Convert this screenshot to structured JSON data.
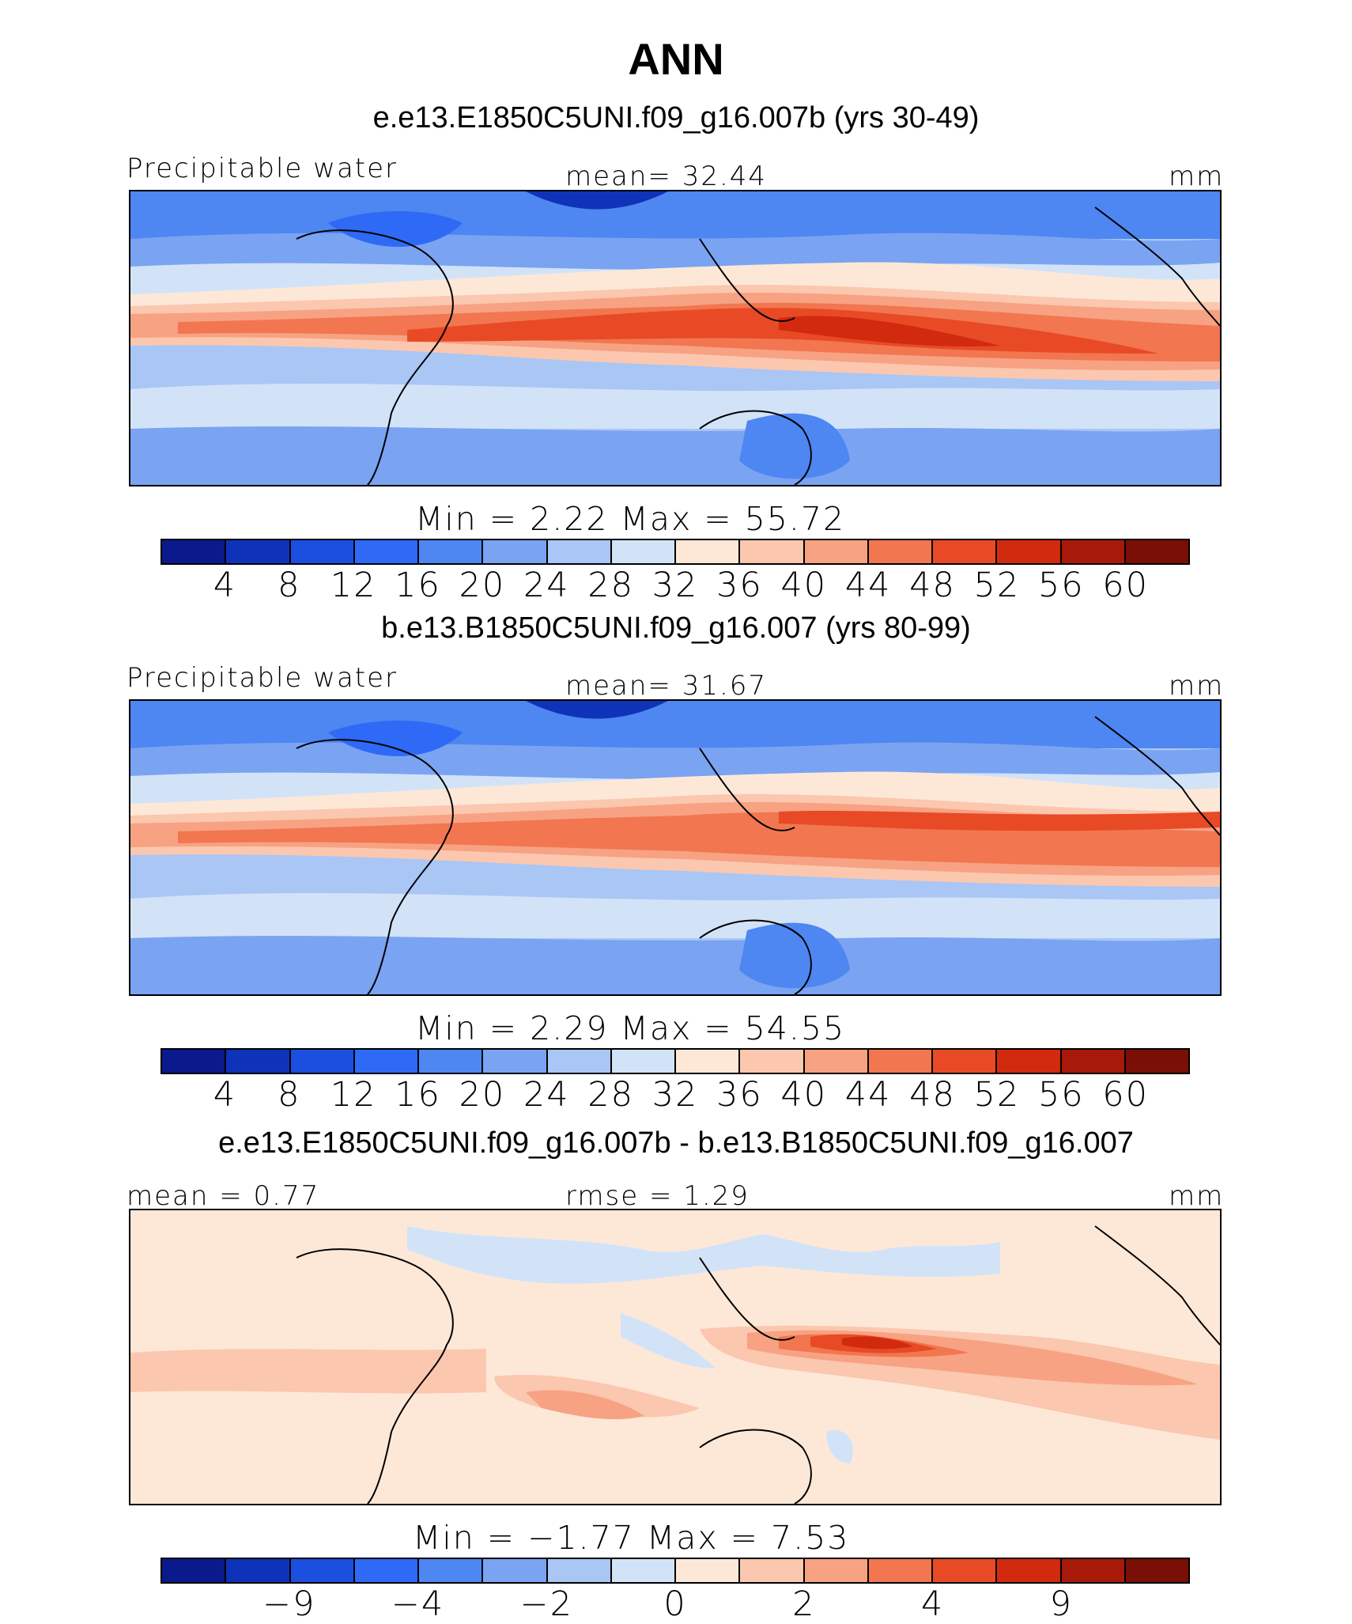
{
  "figure": {
    "title": "ANN",
    "colors": {
      "full": [
        "#0a1a8c",
        "#0f33b8",
        "#1a4fe0",
        "#2e6af5",
        "#4e86f2",
        "#7aa3f2",
        "#a9c6f5",
        "#d2e3f8",
        "#fde8d8",
        "#fbc7ae",
        "#f7a283",
        "#f27650",
        "#e84a26",
        "#d22a0e",
        "#a71a0a",
        "#7a0f06"
      ],
      "diff": [
        "#0a1a8c",
        "#0f33b8",
        "#1a4fe0",
        "#2e6af5",
        "#4e86f2",
        "#7aa3f2",
        "#a9c6f5",
        "#d2e3f8",
        "#fde8d8",
        "#fbc7ae",
        "#f7a283",
        "#f27650",
        "#e84a26",
        "#d22a0e",
        "#a71a0a",
        "#7a0f06"
      ]
    }
  },
  "panels": [
    {
      "subtitle": "e.e13.E1850C5UNI.f09_g16.007b (yrs 30-49)",
      "left_label": "Precipitable water",
      "center_label": "mean=   32.44",
      "units": "mm",
      "minmax": "Min  =     2.22  Max  =     55.72",
      "ticks": [
        "4",
        "8",
        "12",
        "16",
        "20",
        "24",
        "28",
        "32",
        "36",
        "40",
        "44",
        "48",
        "52",
        "56",
        "60"
      ]
    },
    {
      "subtitle": "b.e13.B1850C5UNI.f09_g16.007 (yrs 80-99)",
      "left_label": "Precipitable water",
      "center_label": "mean=   31.67",
      "units": "mm",
      "minmax": "Min  =     2.29  Max  =     54.55",
      "ticks": [
        "4",
        "8",
        "12",
        "16",
        "20",
        "24",
        "28",
        "32",
        "36",
        "40",
        "44",
        "48",
        "52",
        "56",
        "60"
      ]
    },
    {
      "subtitle": "e.e13.E1850C5UNI.f09_g16.007b - b.e13.B1850C5UNI.f09_g16.007",
      "left_label": "mean  =    0.77",
      "center_label": "rmse  =    1.29",
      "units": "mm",
      "minmax": "Min  =   −1.77  Max  =     7.53",
      "ticks": [
        "−9",
        "−4",
        "−2",
        "0",
        "2",
        "4",
        "9"
      ]
    }
  ]
}
